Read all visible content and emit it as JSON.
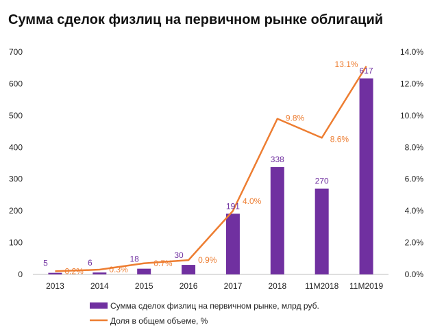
{
  "chart_data": {
    "type": "bar",
    "title": "Сумма сделок физлиц на первичном рынке облигаций",
    "categories": [
      "2013",
      "2014",
      "2015",
      "2016",
      "2017",
      "2018",
      "11M2018",
      "11M2019"
    ],
    "series": [
      {
        "name": "Сумма сделок физлиц на первичном рынке, млрд руб.",
        "type": "bar",
        "axis": "left",
        "color": "#7030A0",
        "values": [
          5,
          6,
          18,
          30,
          191,
          338,
          270,
          617
        ],
        "labels": [
          "5",
          "6",
          "18",
          "30",
          "191",
          "338",
          "270",
          "617"
        ]
      },
      {
        "name": "Доля в общем объеме, %",
        "type": "line",
        "axis": "right",
        "color": "#ED7D31",
        "values": [
          0.2,
          0.3,
          0.7,
          0.9,
          4.0,
          9.8,
          8.6,
          13.1
        ],
        "labels": [
          "0.2%",
          "0.3%",
          "0.7%",
          "0.9%",
          "4.0%",
          "9.8%",
          "8.6%",
          "13.1%"
        ]
      }
    ],
    "y_left": {
      "lim": [
        0,
        700
      ],
      "ticks": [
        "0",
        "100",
        "200",
        "300",
        "400",
        "500",
        "600",
        "700"
      ]
    },
    "y_right": {
      "lim": [
        0,
        14
      ],
      "ticks": [
        "0.0%",
        "2.0%",
        "4.0%",
        "6.0%",
        "8.0%",
        "10.0%",
        "12.0%",
        "14.0%"
      ]
    },
    "grid": false,
    "legend_position": "bottom"
  }
}
